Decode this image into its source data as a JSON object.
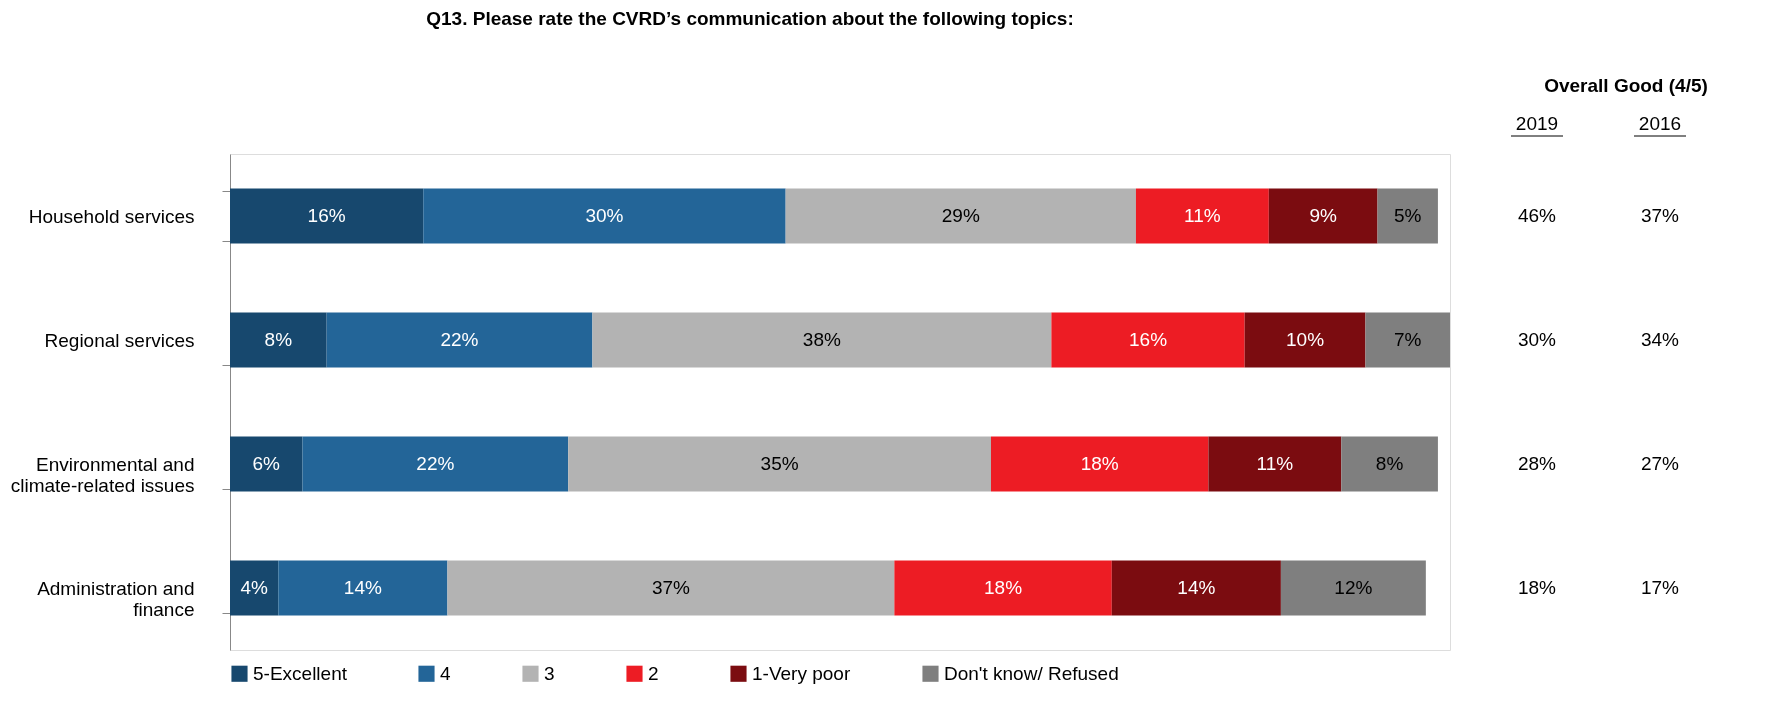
{
  "chart_data": {
    "type": "bar",
    "orientation": "horizontal",
    "stacked": true,
    "title": "Q13. Please rate the CVRD’s communication about the following topics:",
    "categories": [
      "Household services",
      "Regional services",
      "Environmental and climate-related issues",
      "Administration and finance"
    ],
    "xlim": [
      0,
      101
    ],
    "tick_labels": "y",
    "legend": "bottom",
    "grid": false,
    "series": [
      {
        "name": "5-Excellent",
        "color": "#17486e",
        "values": [
          16,
          8,
          6,
          4
        ],
        "value_labels": [
          "16%",
          "8%",
          "6%",
          "4%"
        ]
      },
      {
        "name": "4",
        "color": "#236598",
        "values": [
          30,
          22,
          22,
          14
        ],
        "value_labels": [
          "30%",
          "22%",
          "22%",
          "14%"
        ]
      },
      {
        "name": "3",
        "color": "#b3b3b3",
        "values": [
          29,
          38,
          35,
          37
        ],
        "value_labels": [
          "29%",
          "38%",
          "35%",
          "37%"
        ]
      },
      {
        "name": "2",
        "color": "#ed1c24",
        "values": [
          11,
          16,
          18,
          18
        ],
        "value_labels": [
          "11%",
          "16%",
          "18%",
          "18%"
        ]
      },
      {
        "name": "1-Very poor",
        "color": "#7b0c10",
        "values": [
          9,
          10,
          11,
          14
        ],
        "value_labels": [
          "9%",
          "10%",
          "11%",
          "14%"
        ]
      },
      {
        "name": "Don't know/ Refused",
        "color": "#7f7f7f",
        "values": [
          5,
          7,
          8,
          12
        ],
        "value_labels": [
          "5%",
          "7%",
          "8%",
          "12%"
        ]
      }
    ],
    "annotations": [
      "Overall Good (4/5)",
      "2019",
      "2016",
      "46%",
      "37%",
      "30%",
      "34%",
      "28%",
      "27%",
      "18%",
      "17%"
    ]
  }
}
